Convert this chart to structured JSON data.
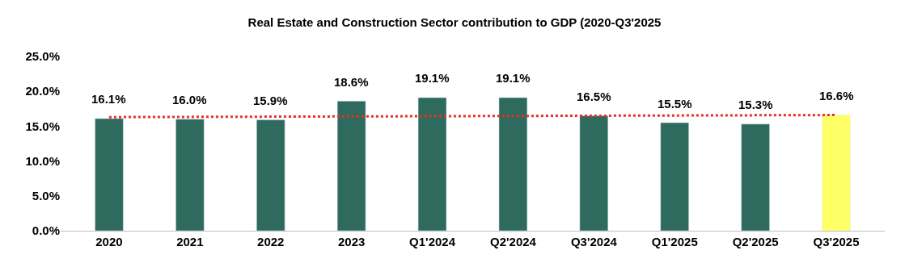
{
  "chart_data": {
    "type": "bar",
    "title": "Real Estate and Construction Sector contribution to GDP (2020-Q3'2025",
    "categories": [
      "2020",
      "2021",
      "2022",
      "2023",
      "Q1'2024",
      "Q2'2024",
      "Q3'2024",
      "Q1'2025",
      "Q2'2025",
      "Q3'2025"
    ],
    "values": [
      16.1,
      16.0,
      15.9,
      18.6,
      19.1,
      19.1,
      16.5,
      15.5,
      15.3,
      16.6
    ],
    "colors": [
      "#2e6b5e",
      "#2e6b5e",
      "#2e6b5e",
      "#2e6b5e",
      "#2e6b5e",
      "#2e6b5e",
      "#2e6b5e",
      "#2e6b5e",
      "#2e6b5e",
      "#ffff66"
    ],
    "value_labels": [
      "16.1%",
      "16.0%",
      "15.9%",
      "18.6%",
      "19.1%",
      "19.1%",
      "16.5%",
      "15.5%",
      "15.3%",
      "16.6%"
    ],
    "series": [
      {
        "type": "line",
        "values": [
          16.3,
          null,
          null,
          null,
          null,
          null,
          null,
          null,
          null,
          16.6
        ],
        "color": "#e8302a",
        "line_style": "dotted",
        "marker": "none"
      }
    ],
    "ylim": [
      0,
      25
    ],
    "yticks": [
      {
        "value": 0,
        "label": "0.0%"
      },
      {
        "value": 5,
        "label": "5.0%"
      },
      {
        "value": 10,
        "label": "10.0%"
      },
      {
        "value": 15,
        "label": "15.0%"
      },
      {
        "value": 20,
        "label": "20.0%"
      },
      {
        "value": 25,
        "label": "25.0%"
      }
    ],
    "ylabel": null
  }
}
